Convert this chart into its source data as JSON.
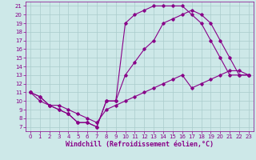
{
  "bg_color": "#cde8e8",
  "line_color": "#880088",
  "grid_color": "#aacccc",
  "xlabel": "Windchill (Refroidissement éolien,°C)",
  "xlim": [
    -0.5,
    23.5
  ],
  "ylim": [
    6.5,
    21.5
  ],
  "xticks": [
    0,
    1,
    2,
    3,
    4,
    5,
    6,
    7,
    8,
    9,
    10,
    11,
    12,
    13,
    14,
    15,
    16,
    17,
    18,
    19,
    20,
    21,
    22,
    23
  ],
  "yticks": [
    7,
    8,
    9,
    10,
    11,
    12,
    13,
    14,
    15,
    16,
    17,
    18,
    19,
    20,
    21
  ],
  "line1_x": [
    0,
    1,
    2,
    3,
    4,
    5,
    6,
    7,
    8,
    9,
    10,
    11,
    12,
    13,
    14,
    15,
    16,
    17,
    18,
    19,
    20,
    21,
    22,
    23
  ],
  "line1_y": [
    11,
    10.5,
    9.5,
    9.0,
    8.5,
    7.5,
    7.5,
    7.0,
    10.0,
    10.0,
    19.0,
    20.0,
    20.5,
    21.0,
    21.0,
    21.0,
    21.0,
    20.0,
    19.0,
    17.0,
    15.0,
    13.0,
    13.0,
    13.0
  ],
  "line2_x": [
    0,
    1,
    2,
    3,
    4,
    5,
    6,
    7,
    8,
    9,
    10,
    11,
    12,
    13,
    14,
    15,
    16,
    17,
    18,
    19,
    20,
    21,
    22,
    23
  ],
  "line2_y": [
    11,
    10.5,
    9.5,
    9.0,
    8.5,
    7.5,
    7.5,
    7.0,
    10.0,
    10.0,
    13.0,
    14.5,
    16.0,
    17.0,
    19.0,
    19.5,
    20.0,
    20.5,
    20.0,
    19.0,
    17.0,
    15.0,
    13.0,
    13.0
  ],
  "line3_x": [
    0,
    1,
    2,
    3,
    4,
    5,
    6,
    7,
    8,
    9,
    10,
    11,
    12,
    13,
    14,
    15,
    16,
    17,
    18,
    19,
    20,
    21,
    22,
    23
  ],
  "line3_y": [
    11,
    10.0,
    9.5,
    9.5,
    9.0,
    8.5,
    8.0,
    7.5,
    9.0,
    9.5,
    10.0,
    10.5,
    11.0,
    11.5,
    12.0,
    12.5,
    13.0,
    11.5,
    12.0,
    12.5,
    13.0,
    13.5,
    13.5,
    13.0
  ],
  "tick_fontsize": 5,
  "xlabel_fontsize": 6,
  "marker": "D",
  "markersize": 1.8,
  "linewidth": 0.8
}
